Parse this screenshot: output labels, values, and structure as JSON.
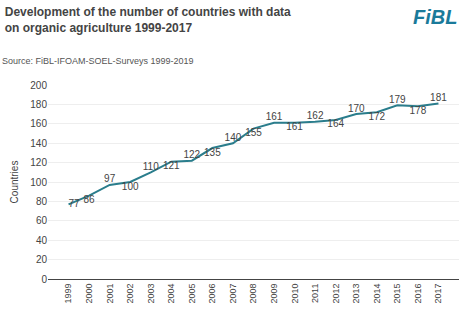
{
  "chart_data": {
    "type": "line",
    "title": "Development of the number of countries with data",
    "subtitle": "on organic agriculture 1999-2017",
    "annotations": [
      {
        "text": "Source: FiBL-IFOAM-SOEL-Surveys 1999-2019"
      },
      {
        "text": "FiBL",
        "color": "#1a7a9a"
      }
    ],
    "x": [
      1999,
      2000,
      2001,
      2002,
      2003,
      2004,
      2005,
      2006,
      2007,
      2008,
      2009,
      2010,
      2011,
      2012,
      2013,
      2014,
      2015,
      2016,
      2017
    ],
    "values": [
      77,
      86,
      97,
      100,
      110,
      121,
      122,
      135,
      140,
      155,
      161,
      161,
      162,
      164,
      170,
      172,
      179,
      178,
      181
    ],
    "color": "#2a7d8c",
    "ylabel": "Countries",
    "xlim": [
      1998,
      2018
    ],
    "xticks": [
      1999,
      2000,
      2001,
      2002,
      2003,
      2004,
      2005,
      2006,
      2007,
      2008,
      2009,
      2010,
      2011,
      2012,
      2013,
      2014,
      2015,
      2016,
      2017
    ],
    "ylim": [
      0,
      200
    ],
    "yticks": [
      0,
      20,
      40,
      60,
      80,
      100,
      120,
      140,
      160,
      180,
      200
    ],
    "grid": true,
    "data_labels": true
  }
}
